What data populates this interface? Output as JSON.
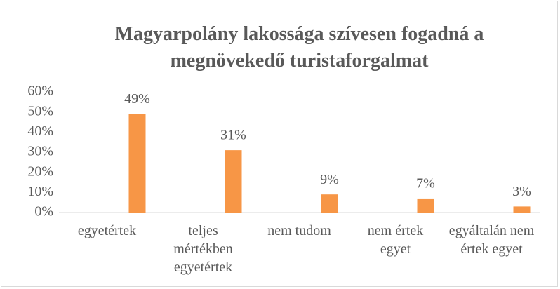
{
  "chart_data": {
    "type": "bar",
    "title": "Magyarpolány lakossága szívesen fogadná a megnövekedő turistaforgalmat",
    "categories": [
      "egyetértek",
      "teljes mértékben egyetértek",
      "nem tudom",
      "nem értek egyet",
      "egyáltalán nem értek egyet"
    ],
    "values": [
      49,
      31,
      9,
      7,
      3
    ],
    "value_labels": [
      "49%",
      "31%",
      "9%",
      "7%",
      "3%"
    ],
    "color": "#f79646",
    "ylim": [
      0,
      60
    ],
    "yticks": [
      {
        "value": 0,
        "label": "0%"
      },
      {
        "value": 10,
        "label": "10%"
      },
      {
        "value": 20,
        "label": "20%"
      },
      {
        "value": 30,
        "label": "30%"
      },
      {
        "value": 40,
        "label": "40%"
      },
      {
        "value": 50,
        "label": "50%"
      },
      {
        "value": 60,
        "label": "60%"
      }
    ],
    "grid": false
  }
}
